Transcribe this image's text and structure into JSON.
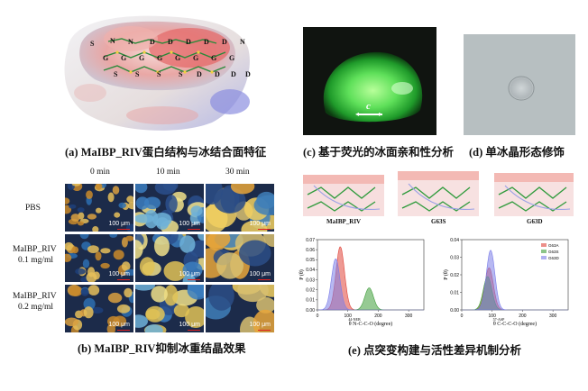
{
  "panel_a": {
    "caption": "(a) MaIBP_RIV蛋白结构与冰结合面特征",
    "residue_labels": [
      "S",
      "N",
      "N",
      "D",
      "D",
      "D",
      "D",
      "D",
      "N",
      "G",
      "G",
      "G",
      "G",
      "G",
      "G",
      "G",
      "G",
      "S",
      "S",
      "S",
      "S",
      "D",
      "D",
      "D",
      "D"
    ]
  },
  "panel_c": {
    "caption": "(c) 基于荧光的冰面亲和性分析",
    "axis_label": "c"
  },
  "panel_d": {
    "caption": "(d) 单冰晶形态修饰"
  },
  "panel_b": {
    "caption": "(b) MaIBP_RIV抑制冰重结晶效果",
    "columns": [
      "0 min",
      "10 min",
      "30 min"
    ],
    "rows": [
      {
        "label_1": "PBS",
        "label_2": ""
      },
      {
        "label_1": "MaIBP_RIV",
        "label_2": "0.1 mg/ml"
      },
      {
        "label_1": "MaIBP_RIV",
        "label_2": "0.2 mg/ml"
      }
    ],
    "scale_label": "100 μm"
  },
  "panel_e": {
    "caption": "(e) 点突变构建与活性差异机制分析",
    "structure_labels": [
      "MaIBP_RIV",
      "G63S",
      "G63D"
    ],
    "chart_data": [
      {
        "type": "area",
        "ylabel": "P (θ)",
        "xlabel": "θ N-C-C-O (degree)",
        "xlabel_superscript": "44-NEB",
        "ylim": [
          0,
          0.07
        ],
        "yticks": [
          0.0,
          0.01,
          0.02,
          0.03,
          0.04,
          0.05,
          0.06,
          0.07
        ],
        "xlim": [
          0,
          350
        ],
        "xticks": [
          0,
          100,
          200,
          300
        ],
        "series": [
          {
            "name": "G63A",
            "color": "#e0453a",
            "peak_x": 75,
            "peak_y": 0.063
          },
          {
            "name": "G63S",
            "color": "#3f9e3a",
            "peak_x": 170,
            "peak_y": 0.022
          },
          {
            "name": "G63D",
            "color": "#7b7de8",
            "peak_x": 60,
            "peak_y": 0.051
          }
        ]
      },
      {
        "type": "area",
        "ylabel": "P (θ)",
        "xlabel": "θ C-C-C-O (degree)",
        "xlabel_superscript": "57-ASP",
        "ylim": [
          0,
          0.04
        ],
        "yticks": [
          0.0,
          0.01,
          0.02,
          0.03,
          0.04
        ],
        "xlim": [
          0,
          350
        ],
        "xticks": [
          0,
          100,
          200,
          300
        ],
        "legend": [
          "G63A",
          "G63S",
          "G63D"
        ],
        "series": [
          {
            "name": "G63A",
            "color": "#e0453a",
            "peak_x": 90,
            "peak_y": 0.024
          },
          {
            "name": "G63S",
            "color": "#3f9e3a",
            "peak_x": 85,
            "peak_y": 0.019
          },
          {
            "name": "G63D",
            "color": "#7b7de8",
            "peak_x": 95,
            "peak_y": 0.034
          }
        ]
      }
    ]
  }
}
